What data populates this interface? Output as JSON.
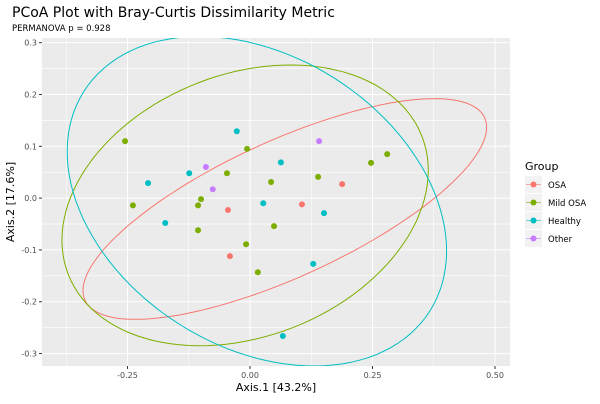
{
  "chart_data": {
    "type": "scatter",
    "title": "PCoA Plot with Bray-Curtis Dissimilarity Metric",
    "subtitle": "PERMANOVA p = 0.928",
    "xlabel": "Axis.1  [43.2%]",
    "ylabel": "Axis.2  [17.6%]",
    "xlim": [
      -0.4245,
      0.5306
    ],
    "ylim": [
      -0.324,
      0.309
    ],
    "xticks": [
      -0.25,
      0.0,
      0.25,
      0.5
    ],
    "xtick_labels": [
      "-0.25",
      "0.00",
      "0.25",
      "0.50"
    ],
    "yticks": [
      0.3,
      0.2,
      0.1,
      0.0,
      -0.1,
      -0.2,
      -0.3
    ],
    "ytick_labels": [
      "0.3",
      "0.2",
      "0.1",
      "0.0",
      "-0.1",
      "-0.2",
      "-0.3"
    ],
    "grid": true,
    "legend": {
      "title": "Group",
      "placement": "right"
    },
    "series": [
      {
        "name": "OSA",
        "color": "#F8766D",
        "points": [
          [
            -0.045,
            -0.023
          ],
          [
            -0.041,
            -0.112
          ],
          [
            0.106,
            -0.012
          ],
          [
            0.188,
            0.027
          ]
        ],
        "ellipse": {
          "center": [
            0.071,
            -0.021
          ],
          "u": [
            0.408,
            0.176
          ],
          "v": [
            0.057,
            -0.12
          ]
        }
      },
      {
        "name": "Mild OSA",
        "color": "#7CAE00",
        "points": [
          [
            -0.255,
            0.11
          ],
          [
            -0.047,
            0.048
          ],
          [
            -0.1,
            -0.002
          ],
          [
            -0.239,
            -0.014
          ],
          [
            -0.106,
            -0.014
          ],
          [
            -0.106,
            -0.062
          ],
          [
            -0.006,
            0.095
          ],
          [
            0.247,
            0.068
          ],
          [
            0.28,
            0.085
          ],
          [
            0.139,
            0.041
          ],
          [
            0.043,
            0.031
          ],
          [
            0.049,
            -0.054
          ],
          [
            -0.008,
            -0.089
          ],
          [
            0.016,
            -0.143
          ]
        ],
        "ellipse": {
          "center": [
            -0.01,
            -0.014
          ],
          "u": [
            0.361,
            0.133
          ],
          "v": [
            0.097,
            -0.236
          ]
        }
      },
      {
        "name": "Healthy",
        "color": "#00BFC4",
        "points": [
          [
            -0.027,
            0.129
          ],
          [
            -0.124,
            0.048
          ],
          [
            -0.208,
            0.029
          ],
          [
            -0.173,
            -0.048
          ],
          [
            0.063,
            0.069
          ],
          [
            0.027,
            -0.01
          ],
          [
            0.151,
            -0.029
          ],
          [
            0.129,
            -0.127
          ],
          [
            0.067,
            -0.266
          ]
        ],
        "ellipse": {
          "center": [
            0.014,
            -0.006
          ],
          "u": [
            0.353,
            -0.212
          ],
          "v": [
            -0.159,
            -0.237
          ]
        }
      },
      {
        "name": "Other",
        "color": "#C77CFF",
        "points": [
          [
            -0.09,
            0.06
          ],
          [
            -0.076,
            0.017
          ],
          [
            0.141,
            0.11
          ]
        ]
      }
    ]
  }
}
